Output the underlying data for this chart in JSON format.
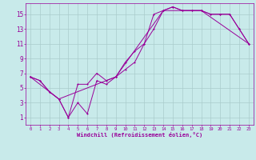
{
  "bg_color": "#c8eaea",
  "line_color": "#990099",
  "grid_color": "#aacccc",
  "xlabel": "Windchill (Refroidissement éolien,°C)",
  "xlabel_color": "#990099",
  "tick_color": "#990099",
  "xlim": [
    -0.5,
    23.5
  ],
  "ylim": [
    0,
    16.5
  ],
  "xticks": [
    0,
    1,
    2,
    3,
    4,
    5,
    6,
    7,
    8,
    9,
    10,
    11,
    12,
    13,
    14,
    15,
    16,
    17,
    18,
    19,
    20,
    21,
    22,
    23
  ],
  "yticks": [
    1,
    3,
    5,
    7,
    9,
    11,
    13,
    15
  ],
  "curve1_x": [
    0,
    1,
    2,
    3,
    4,
    5,
    6,
    7,
    8,
    9,
    10,
    11,
    12,
    13,
    14,
    15,
    16,
    17,
    18,
    19,
    20,
    21,
    22,
    23
  ],
  "curve1_y": [
    6.5,
    6.0,
    4.5,
    3.5,
    1.0,
    3.0,
    1.5,
    6.0,
    5.5,
    6.5,
    7.5,
    8.5,
    11.0,
    15.0,
    15.5,
    16.0,
    15.5,
    15.5,
    15.5,
    15.0,
    15.0,
    15.0,
    13.0,
    11.0
  ],
  "curve2_x": [
    0,
    1,
    2,
    3,
    4,
    5,
    6,
    7,
    8,
    9,
    10,
    11,
    12,
    13,
    14,
    15,
    16,
    17,
    18,
    19,
    20,
    21,
    22,
    23
  ],
  "curve2_y": [
    6.5,
    6.0,
    4.5,
    3.5,
    1.0,
    5.5,
    5.5,
    7.0,
    6.0,
    6.5,
    8.5,
    10.0,
    11.0,
    13.0,
    15.5,
    16.0,
    15.5,
    15.5,
    15.5,
    15.0,
    15.0,
    15.0,
    13.0,
    11.0
  ],
  "curve3_x": [
    0,
    2,
    3,
    9,
    14,
    18,
    23
  ],
  "curve3_y": [
    6.5,
    4.5,
    3.5,
    6.5,
    15.5,
    15.5,
    11.0
  ]
}
